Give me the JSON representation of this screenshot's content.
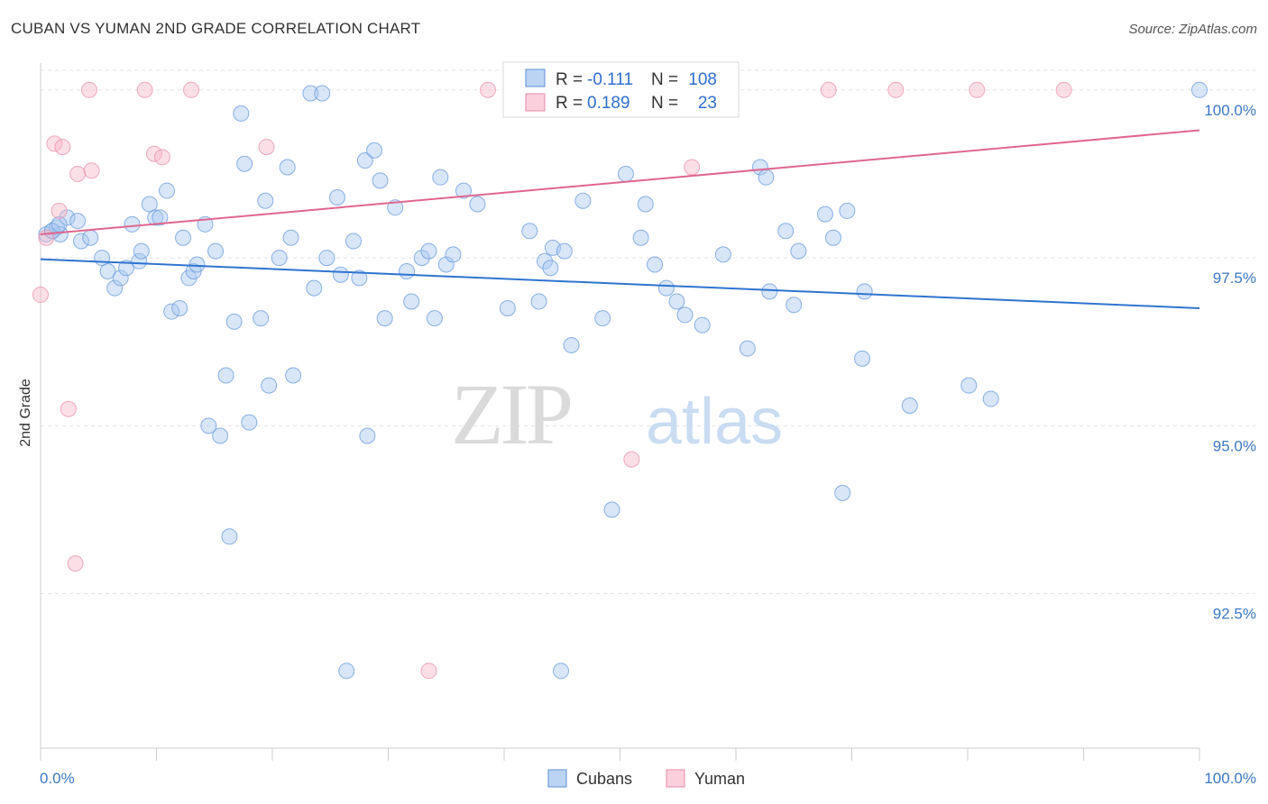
{
  "title": "CUBAN VS YUMAN 2ND GRADE CORRELATION CHART",
  "source": "Source: ZipAtlas.com",
  "colors": {
    "cuban": "#a9c8ef",
    "cuban_line": "#2f74d0",
    "yuman": "#f6b7c9",
    "yuman_line": "#e0668f",
    "tick_label": "#3b78c3"
  },
  "legend": {
    "r_label": "R =",
    "n_label": "N =",
    "rows": [
      {
        "series": "Cubans",
        "r": "-0.111",
        "n": "108"
      },
      {
        "series": "Yuman",
        "r": "0.189",
        "n": "23"
      }
    ]
  },
  "watermark": {
    "zip": "ZIP",
    "atlas": "atlas"
  },
  "chart_data": {
    "type": "scatter",
    "title": "CUBAN VS YUMAN 2ND GRADE CORRELATION CHART",
    "xlabel": "",
    "ylabel": "2nd Grade",
    "xlim": [
      0,
      100
    ],
    "ylim": [
      90.2,
      100.4
    ],
    "x_tick_labels": [
      "0.0%",
      "100.0%"
    ],
    "y_ticks": [
      100.0,
      97.5,
      95.0,
      92.5
    ],
    "y_tick_labels": [
      "100.0%",
      "97.5%",
      "95.0%",
      "92.5%"
    ],
    "legend_entries": [
      "Cubans",
      "Yuman"
    ],
    "series": [
      {
        "name": "Cubans",
        "trend": {
          "x": [
            0,
            100
          ],
          "y": [
            97.48,
            96.75
          ]
        },
        "points": [
          [
            0.5,
            97.85
          ],
          [
            1.0,
            97.9
          ],
          [
            1.4,
            97.95
          ],
          [
            1.7,
            97.85
          ],
          [
            2.3,
            98.1
          ],
          [
            3.2,
            98.05
          ],
          [
            3.5,
            97.75
          ],
          [
            4.3,
            97.8
          ],
          [
            5.3,
            97.5
          ],
          [
            5.8,
            97.3
          ],
          [
            6.4,
            97.05
          ],
          [
            6.9,
            97.2
          ],
          [
            7.4,
            97.35
          ],
          [
            7.9,
            98.0
          ],
          [
            8.5,
            97.45
          ],
          [
            8.7,
            97.6
          ],
          [
            9.4,
            98.3
          ],
          [
            9.9,
            98.1
          ],
          [
            10.3,
            98.1
          ],
          [
            10.9,
            98.5
          ],
          [
            11.3,
            96.7
          ],
          [
            12.0,
            96.75
          ],
          [
            12.3,
            97.8
          ],
          [
            12.8,
            97.2
          ],
          [
            13.2,
            97.3
          ],
          [
            13.5,
            97.4
          ],
          [
            14.2,
            98.0
          ],
          [
            14.5,
            95.0
          ],
          [
            15.1,
            97.6
          ],
          [
            15.5,
            94.85
          ],
          [
            16.0,
            95.75
          ],
          [
            16.3,
            93.35
          ],
          [
            16.7,
            96.55
          ],
          [
            17.3,
            99.65
          ],
          [
            17.6,
            98.9
          ],
          [
            18.0,
            95.05
          ],
          [
            19.0,
            96.6
          ],
          [
            19.4,
            98.35
          ],
          [
            19.7,
            95.6
          ],
          [
            20.6,
            97.5
          ],
          [
            21.3,
            98.85
          ],
          [
            21.6,
            97.8
          ],
          [
            21.8,
            95.75
          ],
          [
            23.3,
            99.95
          ],
          [
            23.6,
            97.05
          ],
          [
            24.3,
            99.95
          ],
          [
            24.7,
            97.5
          ],
          [
            25.6,
            98.4
          ],
          [
            25.9,
            97.25
          ],
          [
            26.4,
            91.35
          ],
          [
            27.0,
            97.75
          ],
          [
            27.5,
            97.2
          ],
          [
            28.2,
            94.85
          ],
          [
            28.0,
            98.95
          ],
          [
            28.8,
            99.1
          ],
          [
            29.3,
            98.65
          ],
          [
            29.7,
            96.6
          ],
          [
            30.6,
            98.25
          ],
          [
            31.6,
            97.3
          ],
          [
            32.0,
            96.85
          ],
          [
            32.9,
            97.5
          ],
          [
            33.5,
            97.6
          ],
          [
            34.0,
            96.6
          ],
          [
            34.5,
            98.7
          ],
          [
            35.0,
            97.4
          ],
          [
            35.6,
            97.55
          ],
          [
            36.5,
            98.5
          ],
          [
            37.7,
            98.3
          ],
          [
            40.3,
            96.75
          ],
          [
            42.2,
            97.9
          ],
          [
            43.0,
            96.85
          ],
          [
            43.5,
            97.45
          ],
          [
            44.0,
            97.35
          ],
          [
            44.2,
            97.65
          ],
          [
            44.9,
            91.35
          ],
          [
            45.2,
            97.6
          ],
          [
            45.8,
            96.2
          ],
          [
            46.8,
            98.35
          ],
          [
            48.5,
            96.6
          ],
          [
            49.3,
            93.75
          ],
          [
            50.5,
            98.75
          ],
          [
            51.8,
            97.8
          ],
          [
            52.2,
            98.3
          ],
          [
            53.0,
            97.4
          ],
          [
            54.0,
            97.05
          ],
          [
            54.9,
            96.85
          ],
          [
            55.6,
            96.65
          ],
          [
            57.1,
            96.5
          ],
          [
            58.9,
            97.55
          ],
          [
            61.0,
            96.15
          ],
          [
            62.1,
            98.85
          ],
          [
            62.6,
            98.7
          ],
          [
            62.9,
            97.0
          ],
          [
            64.3,
            97.9
          ],
          [
            65.0,
            96.8
          ],
          [
            65.4,
            97.6
          ],
          [
            67.7,
            98.15
          ],
          [
            68.4,
            97.8
          ],
          [
            69.2,
            94.0
          ],
          [
            69.6,
            98.2
          ],
          [
            70.9,
            96.0
          ],
          [
            71.1,
            97.0
          ],
          [
            75.0,
            95.3
          ],
          [
            80.1,
            95.6
          ],
          [
            82.0,
            95.4
          ],
          [
            100,
            100.0
          ],
          [
            1.0,
            97.9
          ],
          [
            1.6,
            98.0
          ]
        ]
      },
      {
        "name": "Yuman",
        "trend": {
          "x": [
            0,
            100
          ],
          "y": [
            97.85,
            99.4
          ]
        },
        "points": [
          [
            0.0,
            96.95
          ],
          [
            0.5,
            97.8
          ],
          [
            1.2,
            99.2
          ],
          [
            1.6,
            98.2
          ],
          [
            1.9,
            99.15
          ],
          [
            2.4,
            95.25
          ],
          [
            3.0,
            92.95
          ],
          [
            3.2,
            98.75
          ],
          [
            4.4,
            98.8
          ],
          [
            4.2,
            100.0
          ],
          [
            9.0,
            100.0
          ],
          [
            9.8,
            99.05
          ],
          [
            10.5,
            99.0
          ],
          [
            13.0,
            100.0
          ],
          [
            19.5,
            99.15
          ],
          [
            33.5,
            91.35
          ],
          [
            38.6,
            100.0
          ],
          [
            51.0,
            94.5
          ],
          [
            56.2,
            98.85
          ],
          [
            68.0,
            100.0
          ],
          [
            73.8,
            100.0
          ],
          [
            80.8,
            100.0
          ],
          [
            88.3,
            100.0
          ]
        ]
      }
    ]
  }
}
